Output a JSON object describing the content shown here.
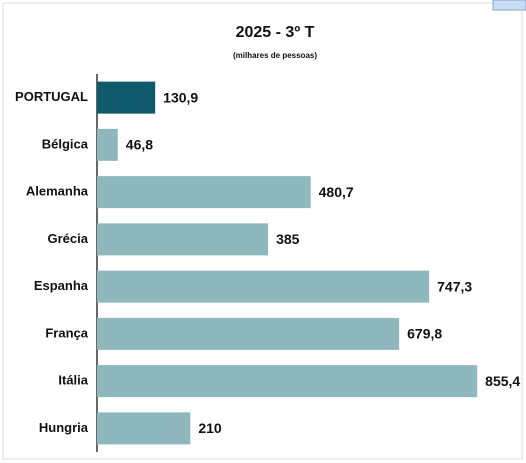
{
  "chart_data": {
    "type": "bar",
    "orientation": "horizontal",
    "title": "2025 - 3º T",
    "subtitle": "(milhares de pessoas)",
    "categories": [
      "PORTUGAL",
      "Bélgica",
      "Alemanha",
      "Grécia",
      "Espanha",
      "França",
      "Itália",
      "Hungria"
    ],
    "values": [
      130.9,
      46.8,
      480.7,
      385,
      747.3,
      679.8,
      855.4,
      210
    ],
    "value_labels": [
      "130,9",
      "46,8",
      "480,7",
      "385",
      "747,3",
      "679,8",
      "855,4",
      "210"
    ],
    "colors": [
      "#0e5a6b",
      "#8fb8bd",
      "#8fb8bd",
      "#8fb8bd",
      "#8fb8bd",
      "#8fb8bd",
      "#8fb8bd",
      "#8fb8bd"
    ],
    "xlim": [
      0,
      945
    ]
  }
}
